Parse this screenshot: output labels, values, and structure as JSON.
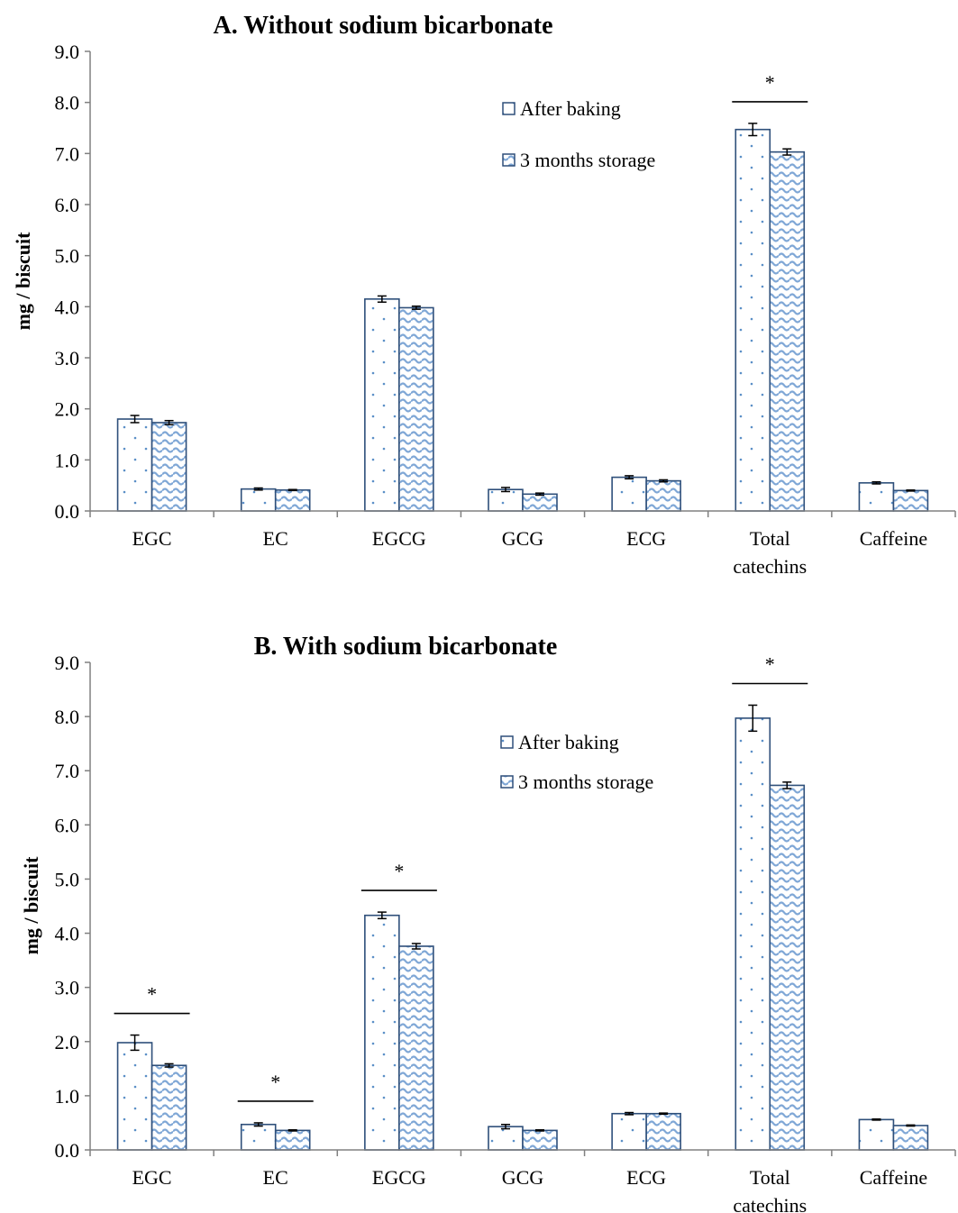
{
  "chart_data": [
    {
      "type": "bar",
      "title": "A. Without sodium bicarbonate",
      "ylabel": "mg / biscuit",
      "xlabel": "",
      "ylim": [
        0,
        9
      ],
      "yticks": [
        "0.0",
        "1.0",
        "2.0",
        "3.0",
        "4.0",
        "5.0",
        "6.0",
        "7.0",
        "8.0",
        "9.0"
      ],
      "categories": [
        "EGC",
        "EC",
        "EGCG",
        "GCG",
        "ECG",
        "Total catechins",
        "Caffeine"
      ],
      "series": [
        {
          "name": "After baking",
          "pattern": "dots",
          "values": [
            1.8,
            0.43,
            4.15,
            0.42,
            0.66,
            7.47,
            0.55
          ],
          "errors": [
            0.07,
            0.02,
            0.06,
            0.04,
            0.03,
            0.12,
            0.02
          ]
        },
        {
          "name": "3 months storage",
          "pattern": "waves",
          "values": [
            1.73,
            0.41,
            3.98,
            0.33,
            0.59,
            7.03,
            0.4
          ],
          "errors": [
            0.04,
            0.01,
            0.03,
            0.02,
            0.02,
            0.06,
            0.01
          ]
        }
      ],
      "significance": [
        {
          "category": "Total catechins",
          "label": "*"
        }
      ],
      "legend": "top-right"
    },
    {
      "type": "bar",
      "title": "B. With sodium bicarbonate",
      "ylabel": "mg / biscuit",
      "xlabel": "",
      "ylim": [
        0,
        9
      ],
      "yticks": [
        "0.0",
        "1.0",
        "2.0",
        "3.0",
        "4.0",
        "5.0",
        "6.0",
        "7.0",
        "8.0",
        "9.0"
      ],
      "categories": [
        "EGC",
        "EC",
        "EGCG",
        "GCG",
        "ECG",
        "Total catechins",
        "Caffeine"
      ],
      "series": [
        {
          "name": "After baking",
          "pattern": "dots",
          "values": [
            1.98,
            0.47,
            4.33,
            0.43,
            0.67,
            7.97,
            0.56
          ],
          "errors": [
            0.14,
            0.03,
            0.06,
            0.04,
            0.02,
            0.24,
            0.01
          ]
        },
        {
          "name": "3 months storage",
          "pattern": "waves",
          "values": [
            1.56,
            0.36,
            3.76,
            0.36,
            0.67,
            6.73,
            0.45
          ],
          "errors": [
            0.03,
            0.01,
            0.05,
            0.01,
            0.01,
            0.06,
            0.01
          ]
        }
      ],
      "significance": [
        {
          "category": "EGC",
          "label": "*"
        },
        {
          "category": "EC",
          "label": "*"
        },
        {
          "category": "EGCG",
          "label": "*"
        },
        {
          "category": "Total catechins",
          "label": "*"
        }
      ],
      "legend": "top-right"
    }
  ],
  "colors": {
    "bar_outline": "#2E4F7A",
    "dot_fill": "#5B8FC7",
    "wave_stroke": "#7FA7D6",
    "axis": "#808080",
    "error_bar": "#000000"
  }
}
